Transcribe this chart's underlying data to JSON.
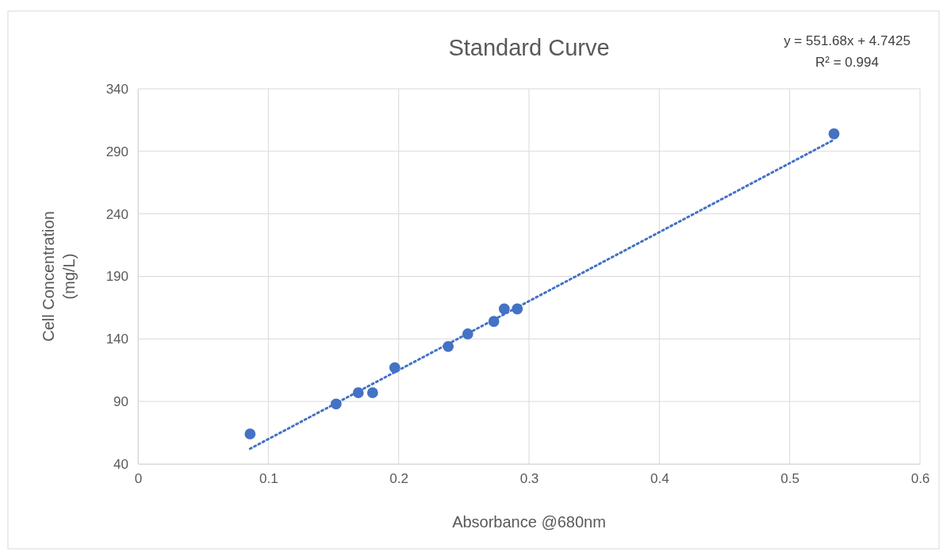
{
  "chart_data": {
    "type": "scatter",
    "title": "Standard Curve",
    "xlabel": "Absorbance @680nm",
    "ylabel": "Cell Concentration (mg/L)",
    "annotations": [
      "y = 551.68x + 4.7425",
      "R² = 0.994"
    ],
    "xlim": [
      0,
      0.6
    ],
    "xticks": [
      0,
      0.1,
      0.2,
      0.3,
      0.4,
      0.5,
      0.6
    ],
    "ylim": [
      40,
      340
    ],
    "yticks": [
      40,
      90,
      140,
      190,
      240,
      290,
      340
    ],
    "grid": true,
    "series": [
      {
        "type": "scatter",
        "color": "#4472c4",
        "marker": "circle",
        "x": [
          0.086,
          0.152,
          0.169,
          0.18,
          0.197,
          0.238,
          0.253,
          0.273,
          0.281,
          0.291,
          0.534
        ],
        "values": [
          64,
          88,
          97,
          97,
          117,
          134,
          144,
          154,
          164,
          164,
          304
        ]
      },
      {
        "type": "line",
        "color": "#4472c4",
        "line_style": "dotted",
        "marker": "none",
        "x": [
          0.086,
          0.534
        ],
        "values": [
          52.2,
          299.3
        ]
      }
    ]
  }
}
